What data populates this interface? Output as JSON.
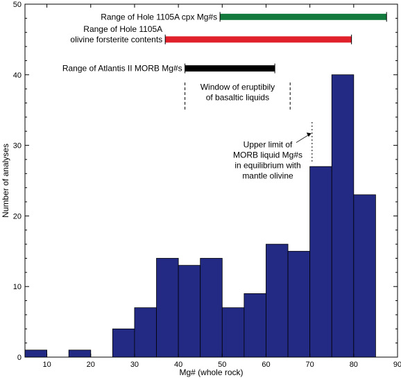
{
  "chart_data": {
    "type": "bar",
    "xlabel": "Mg# (whole rock)",
    "ylabel": "Number of analyses",
    "xlim": [
      5,
      90
    ],
    "ylim": [
      0,
      50
    ],
    "x_ticks": [
      10,
      20,
      30,
      40,
      50,
      60,
      70,
      80,
      90
    ],
    "y_ticks": [
      0,
      10,
      20,
      30,
      40,
      50
    ],
    "bin_width": 5,
    "bar_color": "#222a84",
    "bins": [
      {
        "start": 5,
        "value": 1
      },
      {
        "start": 10,
        "value": 0
      },
      {
        "start": 15,
        "value": 1
      },
      {
        "start": 20,
        "value": 0
      },
      {
        "start": 25,
        "value": 4
      },
      {
        "start": 30,
        "value": 7
      },
      {
        "start": 35,
        "value": 14
      },
      {
        "start": 40,
        "value": 13
      },
      {
        "start": 45,
        "value": 14
      },
      {
        "start": 50,
        "value": 7
      },
      {
        "start": 55,
        "value": 9
      },
      {
        "start": 60,
        "value": 16
      },
      {
        "start": 65,
        "value": 15
      },
      {
        "start": 70,
        "value": 27
      },
      {
        "start": 75,
        "value": 40
      },
      {
        "start": 80,
        "value": 23
      }
    ],
    "ranges": [
      {
        "label": [
          "Range of Hole 1105A cpx Mg#s"
        ],
        "start": 49.5,
        "end": 87.5,
        "y": 48.2,
        "color": "#117a3c"
      },
      {
        "label": [
          "Range of Hole 1105A",
          "olivine forsterite contents"
        ],
        "start": 37,
        "end": 79.5,
        "y": 45,
        "color": "#e0202a"
      },
      {
        "label": [
          "Range of Atlantis II MORB Mg#s"
        ],
        "start": 41.5,
        "end": 62,
        "y": 40.9,
        "color": "#000000"
      }
    ],
    "window": {
      "label": [
        "Window of eruptibily",
        "of basaltic liquids"
      ],
      "left_x": 41.5,
      "right_x": 65.5
    },
    "upper_limit": {
      "label": [
        "Upper limit of",
        "MORB liquid Mg#s",
        "in equilibrium with",
        "mantle olivine"
      ],
      "x": 70.5
    }
  }
}
